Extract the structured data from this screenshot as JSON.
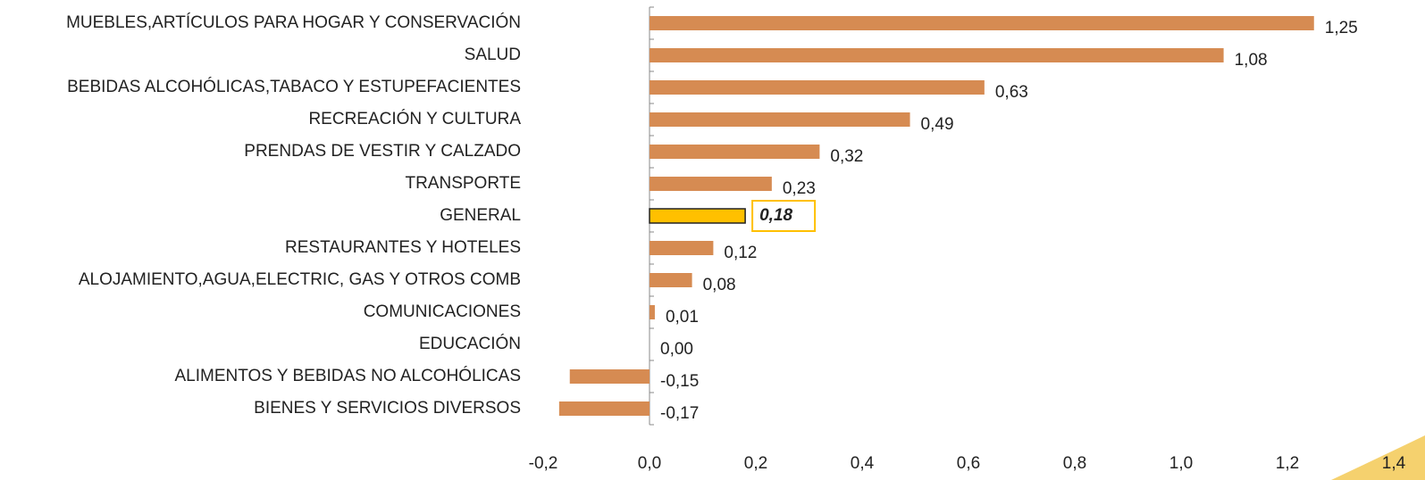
{
  "chart_data": {
    "type": "barh",
    "categories": [
      "MUEBLES,ARTÍCULOS PARA HOGAR Y CONSERVACIÓN",
      "SALUD",
      "BEBIDAS ALCOHÓLICAS,TABACO Y ESTUPEFACIENTES",
      "RECREACIÓN Y CULTURA",
      "PRENDAS DE VESTIR Y CALZADO",
      "TRANSPORTE",
      "GENERAL",
      "RESTAURANTES Y HOTELES",
      "ALOJAMIENTO,AGUA,ELECTRIC, GAS Y OTROS COMB",
      "COMUNICACIONES",
      "EDUCACIÓN",
      "ALIMENTOS Y BEBIDAS NO ALCOHÓLICAS",
      "BIENES Y SERVICIOS DIVERSOS"
    ],
    "values": [
      1.25,
      1.08,
      0.63,
      0.49,
      0.32,
      0.23,
      0.18,
      0.12,
      0.08,
      0.01,
      0.0,
      -0.15,
      -0.17
    ],
    "value_labels": [
      "1,25",
      "1,08",
      "0,63",
      "0,49",
      "0,32",
      "0,23",
      "0,18",
      "0,12",
      "0,08",
      "0,01",
      "0,00",
      "-0,15",
      "-0,17"
    ],
    "colors": [
      "#d68b52",
      "#d68b52",
      "#d68b52",
      "#d68b52",
      "#d68b52",
      "#d68b52",
      "#ffc000",
      "#d68b52",
      "#d68b52",
      "#d68b52",
      "#d68b52",
      "#d68b52",
      "#d68b52"
    ],
    "xlim": [
      -0.2,
      1.4
    ],
    "xticks": [
      {
        "value": -0.2,
        "label": "-0,2"
      },
      {
        "value": 0,
        "label": "0,0"
      },
      {
        "value": 0.2,
        "label": "0,2"
      },
      {
        "value": 0.4,
        "label": "0,4"
      },
      {
        "value": 0.6,
        "label": "0,6"
      },
      {
        "value": 0.8,
        "label": "0,8"
      },
      {
        "value": 1.0,
        "label": "1,0"
      },
      {
        "value": 1.2,
        "label": "1,2"
      },
      {
        "value": 1.4,
        "label": "1,4"
      }
    ]
  }
}
